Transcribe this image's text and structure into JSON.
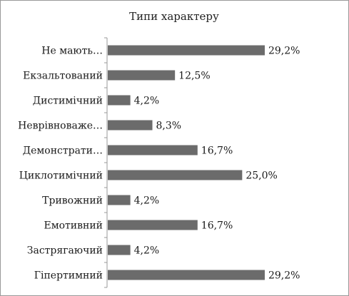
{
  "chart_data": {
    "type": "bar",
    "orientation": "horizontal",
    "title": "Типи характеру",
    "categories": [
      "Не мають…",
      "Екзальтований",
      "Дистимічний",
      "Неврівноваже…",
      "Демонстрати…",
      "Циклотимічний",
      "Тривожний",
      "Емотивний",
      "Застрягаючий",
      "Гіпертимний"
    ],
    "values": [
      29.2,
      12.5,
      4.2,
      8.3,
      16.7,
      25.0,
      4.2,
      16.7,
      4.2,
      29.2
    ],
    "data_labels": [
      "29,2%",
      "12,5%",
      "4,2%",
      "8,3%",
      "16,7%",
      "25,0%",
      "4,2%",
      "16,7%",
      "4,2%",
      "29,2%"
    ],
    "xlabel": "",
    "ylabel": "",
    "xlim": [
      0,
      30
    ],
    "grid": false,
    "legend": "none",
    "bar_color": "#6b6b6b"
  }
}
